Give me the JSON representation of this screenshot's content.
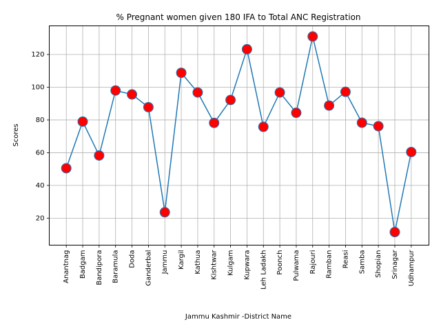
{
  "chart_data": {
    "type": "line",
    "title": "% Pregnant women given 180 IFA to Total ANC Registration",
    "xlabel": "Jammu Kashmir -District Name",
    "ylabel": "Scores",
    "categories": [
      "Anantnag",
      "Badgam",
      "Bandipora",
      "Baramula",
      "Doda",
      "Ganderbal",
      "Jammu",
      "Kargil",
      "Kathua",
      "Kishtwar",
      "Kulgam",
      "Kupwara",
      "Leh Ladakh",
      "Poonch",
      "Pulwama",
      "Rajouri",
      "Ramban",
      "Reasi",
      "Samba",
      "Shopian",
      "Srinagar",
      "Udhampur"
    ],
    "values": [
      50.5,
      79,
      58.3,
      98,
      95.6,
      87.8,
      23.6,
      108.8,
      96.8,
      78.2,
      92.2,
      123.2,
      75.8,
      96.8,
      84.4,
      131,
      88.8,
      97.2,
      78.3,
      76.2,
      11.5,
      60.4
    ],
    "ylim": [
      3.5,
      137.5
    ],
    "yticks": [
      20,
      40,
      60,
      80,
      100,
      120
    ],
    "grid": true,
    "line_color": "#1f77b4",
    "marker_fill": "#ff0000",
    "marker_edge": "#1f77b4"
  }
}
